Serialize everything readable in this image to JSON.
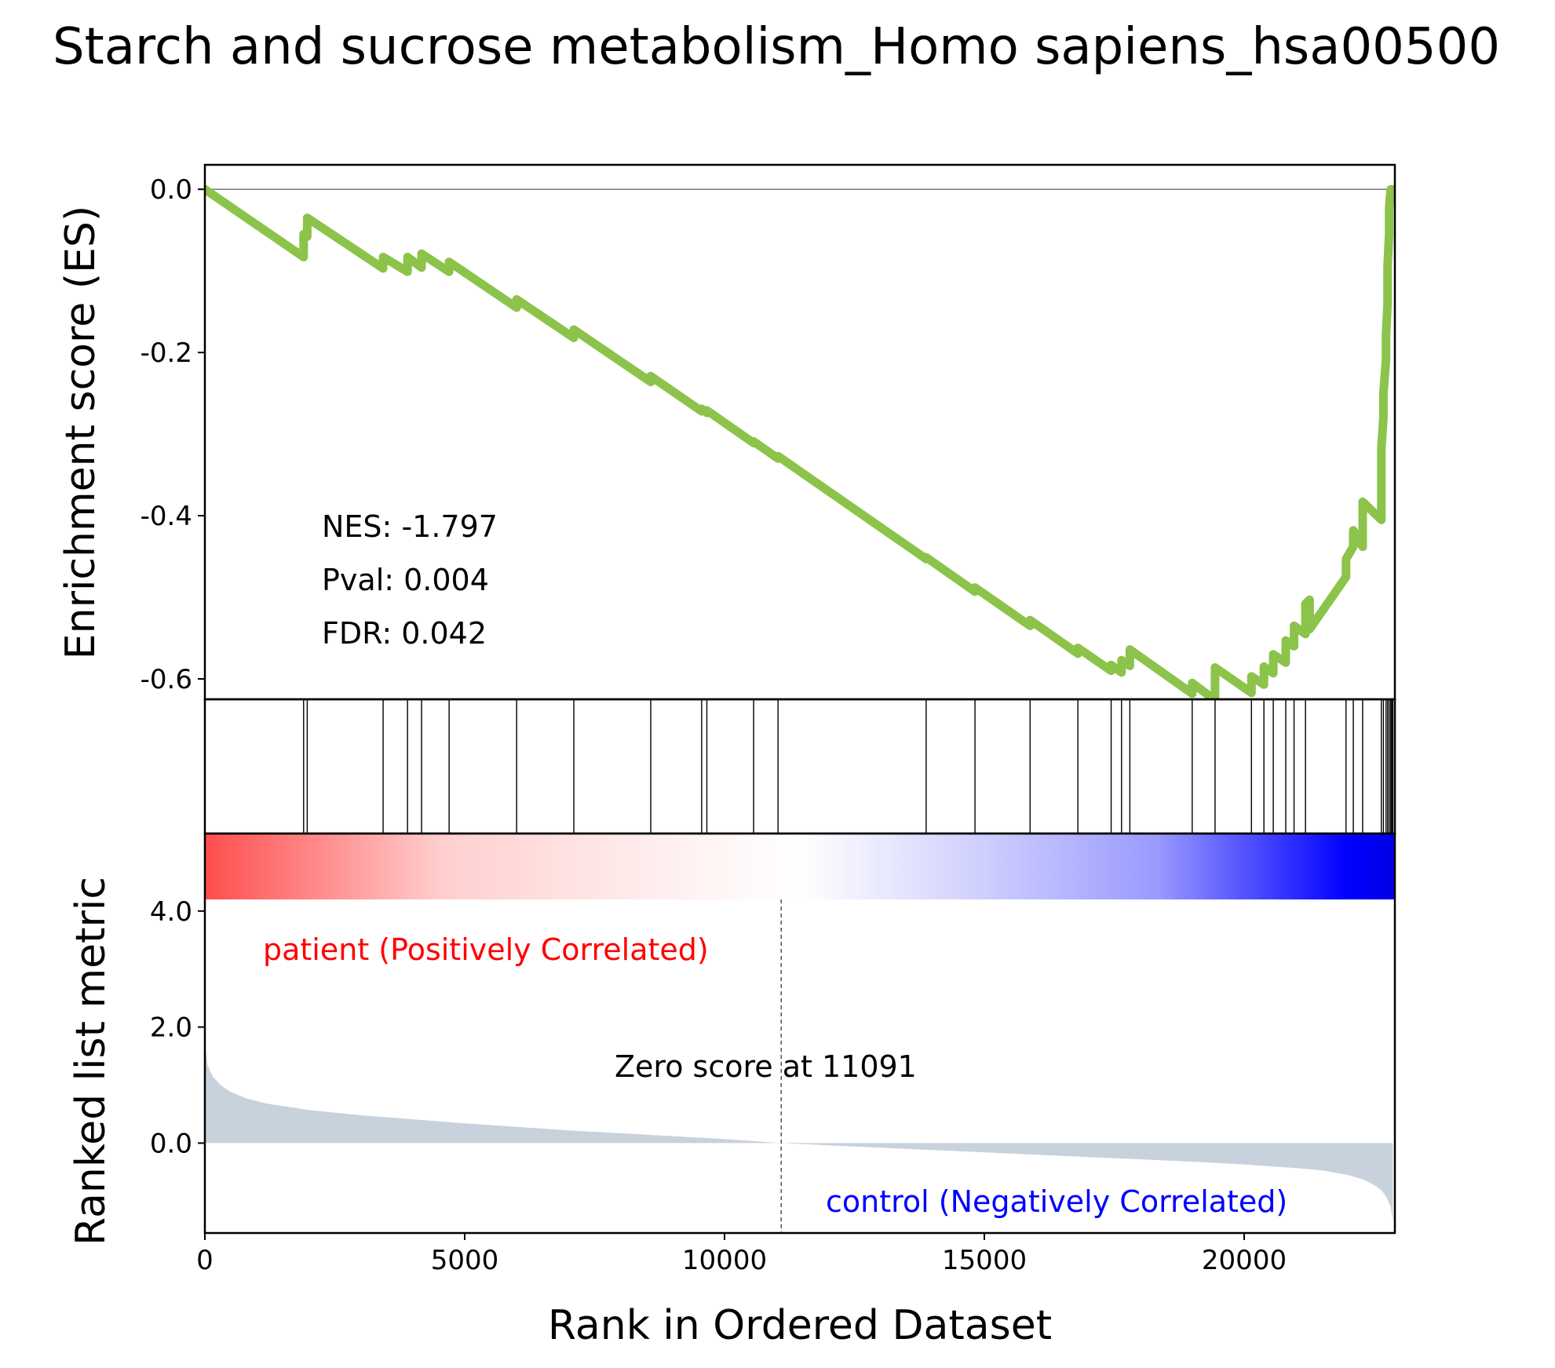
{
  "chart_data": {
    "type": "line",
    "title": "Starch and sucrose metabolism_Homo sapiens_hsa00500",
    "xlabel": "Rank in Ordered Dataset",
    "xlim": [
      0,
      22900
    ],
    "x_ticks": [
      0,
      5000,
      10000,
      15000,
      20000
    ],
    "panels": {
      "enrichment": {
        "ylabel": "Enrichment score (ES)",
        "ylim": [
          -0.625,
          0.03
        ],
        "y_ticks": [
          {
            "value": 0.0,
            "label": "0.0"
          },
          {
            "value": -0.2,
            "label": "-0.2"
          },
          {
            "value": -0.4,
            "label": "-0.4"
          },
          {
            "value": -0.6,
            "label": "-0.6"
          }
        ],
        "line_color": "#8cc34a",
        "zero_line": true,
        "series": [
          {
            "x": [
              0,
              1900,
              1900,
              1970,
              1970,
              3430,
              3430,
              3900,
              3900,
              4170,
              4170,
              4700,
              4700,
              6000,
              6000,
              7100,
              7100,
              8580,
              8580,
              9560,
              9560,
              9660,
              9660,
              10560,
              10560,
              11030,
              11030,
              13880,
              13880,
              14820,
              14820,
              15880,
              15880,
              16800,
              16800,
              17440,
              17440,
              17640,
              17640,
              17800,
              17800,
              19000,
              19000,
              19440,
              19440,
              20140,
              20140,
              20380,
              20380,
              20560,
              20560,
              20800,
              20800,
              20960,
              20960,
              21180,
              21180,
              21260,
              21260,
              21960,
              21960,
              22100,
              22100,
              22280,
              22280,
              22640,
              22640,
              22680,
              22680,
              22730,
              22730,
              22760,
              22760,
              22790,
              22790,
              22820,
              22820,
              22840,
              22840,
              22860
            ],
            "y": [
              0.0,
              -0.083,
              -0.055,
              -0.058,
              -0.035,
              -0.097,
              -0.083,
              -0.101,
              -0.083,
              -0.096,
              -0.079,
              -0.101,
              -0.089,
              -0.145,
              -0.135,
              -0.182,
              -0.172,
              -0.236,
              -0.229,
              -0.272,
              -0.269,
              -0.274,
              -0.271,
              -0.311,
              -0.309,
              -0.33,
              -0.327,
              -0.453,
              -0.451,
              -0.493,
              -0.488,
              -0.535,
              -0.528,
              -0.569,
              -0.562,
              -0.59,
              -0.583,
              -0.592,
              -0.577,
              -0.584,
              -0.564,
              -0.618,
              -0.605,
              -0.626,
              -0.586,
              -0.617,
              -0.597,
              -0.607,
              -0.585,
              -0.593,
              -0.57,
              -0.58,
              -0.553,
              -0.56,
              -0.535,
              -0.545,
              -0.508,
              -0.503,
              -0.539,
              -0.475,
              -0.453,
              -0.438,
              -0.418,
              -0.438,
              -0.383,
              -0.405,
              -0.317,
              -0.28,
              -0.25,
              -0.209,
              -0.179,
              -0.14,
              -0.094,
              -0.055,
              -0.022,
              0.0,
              0.0,
              0.0,
              0.0,
              0.0
            ]
          }
        ],
        "annotations": [
          {
            "label": "NES: -1.797"
          },
          {
            "label": "Pval: 0.004"
          },
          {
            "label": "FDR: 0.042"
          }
        ]
      },
      "hits": {
        "positions": [
          1900,
          1970,
          3430,
          3900,
          4170,
          4700,
          6000,
          7100,
          8580,
          9560,
          9660,
          10560,
          11030,
          13880,
          14820,
          15880,
          16800,
          17440,
          17640,
          17800,
          19000,
          19440,
          20140,
          20380,
          20560,
          20800,
          20960,
          21180,
          21960,
          22100,
          22280,
          22640,
          22680,
          22730,
          22760,
          22790,
          22820,
          22840,
          22860
        ]
      },
      "colorbar": {
        "colors": [
          "#ff4d4d",
          "#ffffff",
          "#0000e6"
        ]
      },
      "ranked_metric": {
        "ylabel": "Ranked list metric",
        "ylim": [
          -1.55,
          4.2
        ],
        "y_ticks": [
          {
            "value": 4.0,
            "label": "4.0"
          },
          {
            "value": 2.0,
            "label": "2.0"
          },
          {
            "value": 0.0,
            "label": "0.0"
          }
        ],
        "fill_color": "#c8d2dc",
        "area": {
          "x": [
            0,
            50,
            150,
            300,
            500,
            800,
            1200,
            2000,
            3000,
            4000,
            5000,
            6000,
            7000,
            8000,
            9000,
            10000,
            11091,
            12000,
            13000,
            14000,
            15000,
            16000,
            17000,
            18000,
            19000,
            20000,
            21000,
            21500,
            22000,
            22300,
            22500,
            22650,
            22750,
            22820,
            22860
          ],
          "y": [
            1.7,
            1.35,
            1.15,
            1.0,
            0.88,
            0.77,
            0.68,
            0.57,
            0.48,
            0.41,
            0.34,
            0.28,
            0.22,
            0.17,
            0.12,
            0.07,
            0.0,
            -0.04,
            -0.08,
            -0.12,
            -0.16,
            -0.2,
            -0.24,
            -0.28,
            -0.32,
            -0.37,
            -0.43,
            -0.47,
            -0.55,
            -0.63,
            -0.72,
            -0.82,
            -0.95,
            -1.1,
            -1.35
          ]
        },
        "zero_cross": 11091,
        "zero_label": "Zero score at 11091",
        "positive_label": "patient (Positively Correlated)",
        "positive_color": "#ff0000",
        "negative_label": "control (Negatively Correlated)",
        "negative_color": "#0000ff"
      }
    }
  }
}
